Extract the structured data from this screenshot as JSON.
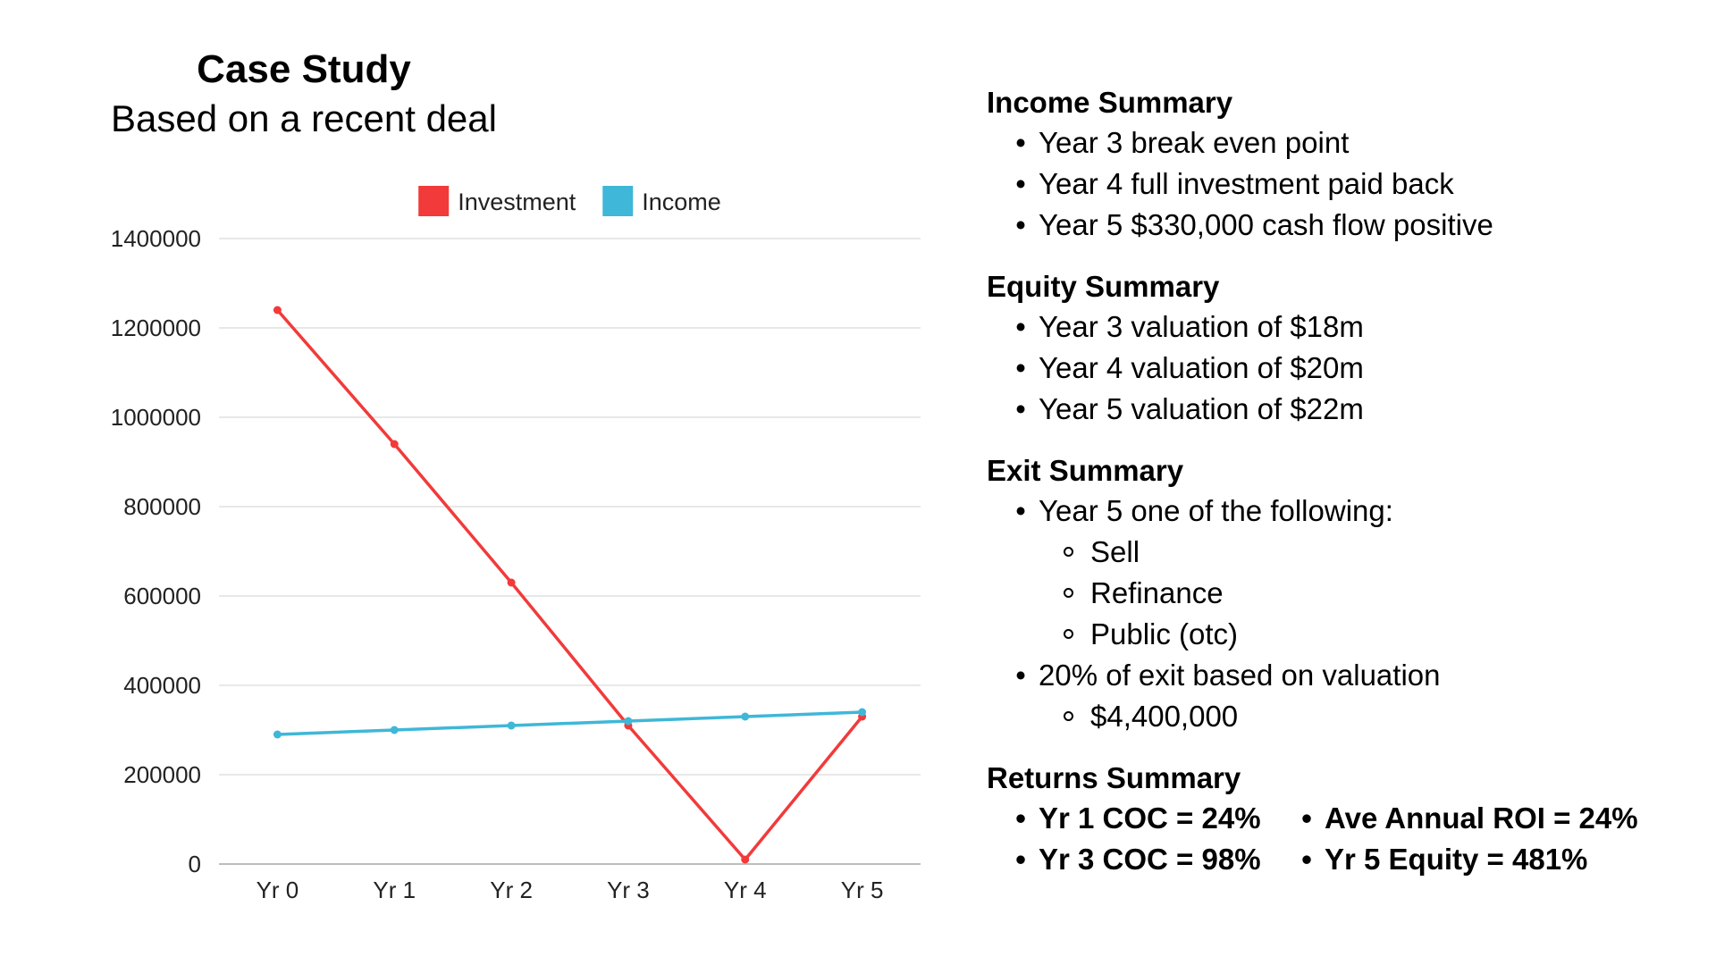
{
  "header": {
    "title": "Case Study",
    "subtitle": "Based on a recent deal"
  },
  "chart_data": {
    "type": "line",
    "title": "",
    "xlabel": "",
    "ylabel": "",
    "categories": [
      "Yr 0",
      "Yr 1",
      "Yr 2",
      "Yr 3",
      "Yr 4",
      "Yr 5"
    ],
    "series": [
      {
        "name": "Investment",
        "color": "#f23a3a",
        "values": [
          1240000,
          940000,
          630000,
          310000,
          10000,
          330000
        ]
      },
      {
        "name": "Income",
        "color": "#3fb7d8",
        "values": [
          290000,
          300000,
          310000,
          320000,
          330000,
          340000
        ]
      }
    ],
    "ylim": [
      0,
      1400000
    ],
    "yticks": [
      0,
      200000,
      400000,
      600000,
      800000,
      1000000,
      1200000,
      1400000
    ],
    "ytick_labels": [
      "0",
      "200000",
      "400000",
      "600000",
      "800000",
      "1000000",
      "1200000",
      "1400000"
    ],
    "grid": true,
    "legend_position": "top"
  },
  "summaries": {
    "income": {
      "heading": "Income Summary",
      "items": [
        "Year 3 break even point",
        "Year 4 full investment paid back",
        "Year 5 $330,000 cash flow positive"
      ]
    },
    "equity": {
      "heading": "Equity Summary",
      "items": [
        "Year 3 valuation of $18m",
        "Year 4 valuation of $20m",
        "Year 5 valuation of $22m"
      ]
    },
    "exit": {
      "heading": "Exit Summary",
      "item1": "Year 5 one of the following:",
      "item1_sub": [
        "Sell",
        "Refinance",
        "Public (otc)"
      ],
      "item2": "20% of exit based on valuation",
      "item2_sub": [
        "$4,400,000"
      ]
    },
    "returns": {
      "heading": "Returns Summary",
      "items": [
        "Yr 1 COC = 24%",
        "Ave Annual ROI = 24%",
        "Yr 3 COC = 98%",
        "Yr 5 Equity = 481%"
      ]
    },
    "bullet_symbol": "•"
  }
}
